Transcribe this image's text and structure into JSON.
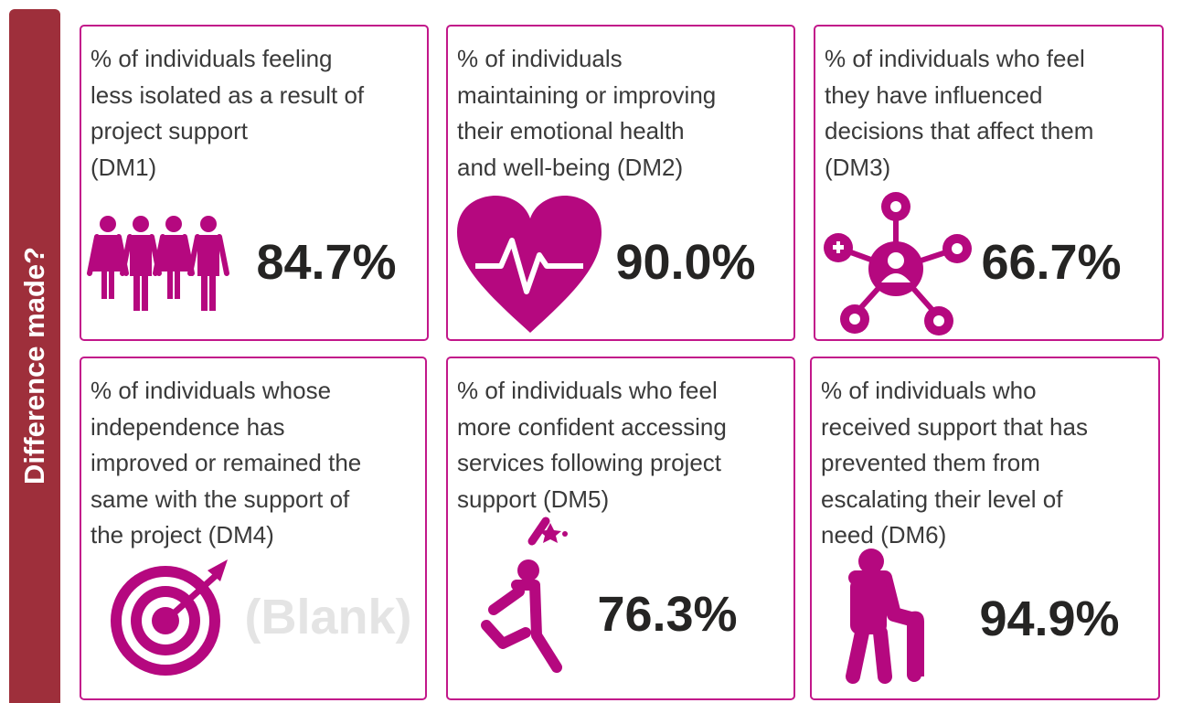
{
  "sidebar": {
    "title": "Difference made?"
  },
  "cards": [
    {
      "label": [
        "% of individuals feeling",
        "less isolated as a result of",
        "project support",
        "(DM1)"
      ],
      "value": "84.7%"
    },
    {
      "label": [
        "% of individuals",
        "maintaining or improving",
        "their emotional health",
        "and well-being (DM2)"
      ],
      "value": "90.0%"
    },
    {
      "label": [
        "% of individuals who feel",
        "they have influenced",
        "decisions that affect them",
        "(DM3)"
      ],
      "value": "66.7%"
    },
    {
      "label": [
        "% of individuals whose",
        "independence has",
        "improved or remained the",
        "same with the support of",
        "the project (DM4)"
      ],
      "value": "(Blank)"
    },
    {
      "label": [
        "% of individuals who feel",
        "more confident accessing",
        "services following project",
        "support (DM5)"
      ],
      "value": "76.3%"
    },
    {
      "label": [
        "% of individuals who",
        "received support that has",
        "prevented them from",
        "escalating their level of",
        "need (DM6)"
      ],
      "value": "94.9%"
    }
  ]
}
